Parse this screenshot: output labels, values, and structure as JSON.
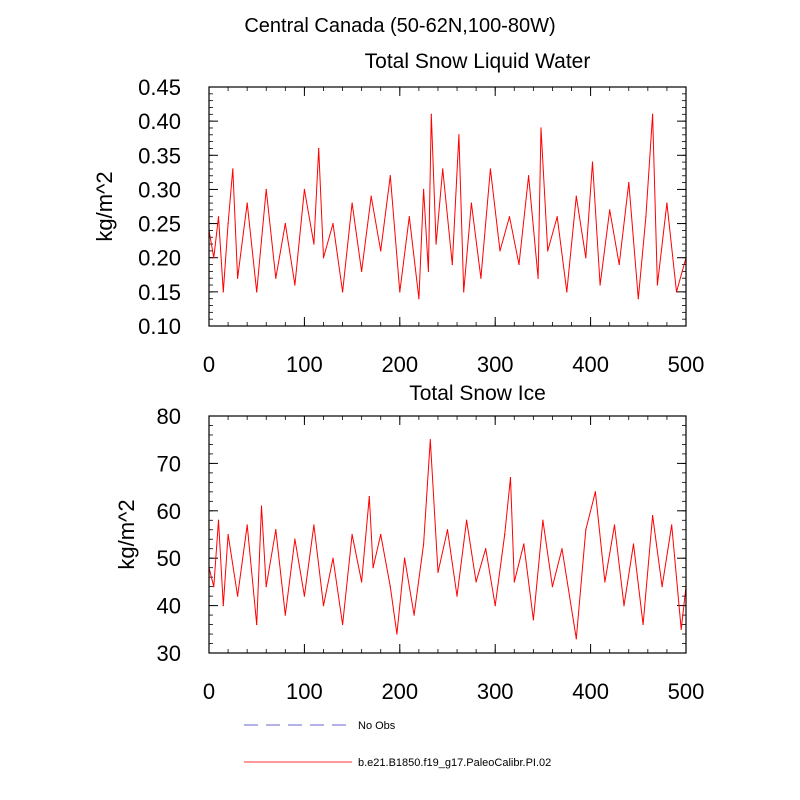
{
  "figure": {
    "suptitle": "Central Canada (50-62N,100-80W)",
    "legend": [
      {
        "label": "No Obs",
        "color": "#9999dd",
        "style": "dashed"
      },
      {
        "label": "b.e21.B1850.f19_g17.PaleoCalibr.PI.02",
        "color": "#ff0000",
        "style": "solid"
      }
    ]
  },
  "chart_data": [
    {
      "type": "line",
      "title": "Total Snow Liquid Water",
      "xlabel": "",
      "ylabel": "kg/m^2",
      "xlim": [
        0,
        500
      ],
      "ylim": [
        0.1,
        0.45
      ],
      "xticks": [
        0,
        100,
        200,
        300,
        400,
        500
      ],
      "xtick_labels": [
        "0",
        "100",
        "200",
        "300",
        "400",
        "500"
      ],
      "yticks": [
        0.1,
        0.15,
        0.2,
        0.25,
        0.3,
        0.35,
        0.4,
        0.45
      ],
      "ytick_labels": [
        "0.10",
        "0.15",
        "0.20",
        "0.25",
        "0.30",
        "0.35",
        "0.40",
        "0.45"
      ],
      "series": [
        {
          "name": "b.e21.B1850.f19_g17.PaleoCalibr.PI.02",
          "color": "#ff0000",
          "x": [
            0,
            5,
            10,
            15,
            20,
            25,
            30,
            40,
            50,
            60,
            70,
            80,
            90,
            100,
            110,
            115,
            120,
            130,
            140,
            150,
            160,
            170,
            180,
            190,
            200,
            210,
            220,
            225,
            230,
            233,
            238,
            245,
            255,
            262,
            267,
            275,
            285,
            295,
            305,
            315,
            325,
            335,
            345,
            348,
            355,
            365,
            375,
            385,
            395,
            402,
            410,
            420,
            430,
            440,
            450,
            458,
            465,
            470,
            480,
            490,
            500
          ],
          "y": [
            0.24,
            0.2,
            0.26,
            0.15,
            0.25,
            0.33,
            0.17,
            0.28,
            0.15,
            0.3,
            0.17,
            0.25,
            0.16,
            0.3,
            0.22,
            0.36,
            0.2,
            0.25,
            0.15,
            0.28,
            0.18,
            0.29,
            0.21,
            0.32,
            0.15,
            0.26,
            0.14,
            0.3,
            0.18,
            0.41,
            0.22,
            0.33,
            0.19,
            0.38,
            0.15,
            0.28,
            0.17,
            0.33,
            0.21,
            0.26,
            0.19,
            0.32,
            0.17,
            0.39,
            0.21,
            0.26,
            0.15,
            0.29,
            0.2,
            0.34,
            0.16,
            0.27,
            0.19,
            0.31,
            0.14,
            0.26,
            0.41,
            0.16,
            0.28,
            0.15,
            0.2
          ]
        }
      ]
    },
    {
      "type": "line",
      "title": "Total Snow Ice",
      "xlabel": "",
      "ylabel": "kg/m^2",
      "xlim": [
        0,
        500
      ],
      "ylim": [
        30,
        80
      ],
      "xticks": [
        0,
        100,
        200,
        300,
        400,
        500
      ],
      "xtick_labels": [
        "0",
        "100",
        "200",
        "300",
        "400",
        "500"
      ],
      "yticks": [
        30,
        40,
        50,
        60,
        70,
        80
      ],
      "ytick_labels": [
        "30",
        "40",
        "50",
        "60",
        "70",
        "80"
      ],
      "series": [
        {
          "name": "b.e21.B1850.f19_g17.PaleoCalibr.PI.02",
          "color": "#ff0000",
          "x": [
            0,
            5,
            10,
            15,
            20,
            30,
            40,
            50,
            55,
            60,
            70,
            80,
            90,
            100,
            110,
            120,
            130,
            140,
            150,
            160,
            168,
            172,
            180,
            190,
            197,
            205,
            215,
            225,
            232,
            240,
            250,
            260,
            270,
            280,
            290,
            300,
            310,
            316,
            320,
            330,
            340,
            350,
            360,
            370,
            385,
            395,
            405,
            415,
            425,
            435,
            445,
            455,
            465,
            475,
            485,
            495,
            500
          ],
          "y": [
            48,
            44,
            58,
            40,
            55,
            42,
            57,
            36,
            61,
            44,
            56,
            38,
            54,
            42,
            57,
            40,
            50,
            36,
            55,
            45,
            63,
            48,
            55,
            44,
            34,
            50,
            38,
            53,
            75,
            47,
            56,
            42,
            58,
            45,
            52,
            40,
            55,
            67,
            45,
            53,
            37,
            58,
            44,
            52,
            33,
            56,
            64,
            45,
            57,
            40,
            53,
            36,
            59,
            44,
            57,
            35,
            44
          ]
        }
      ]
    }
  ]
}
